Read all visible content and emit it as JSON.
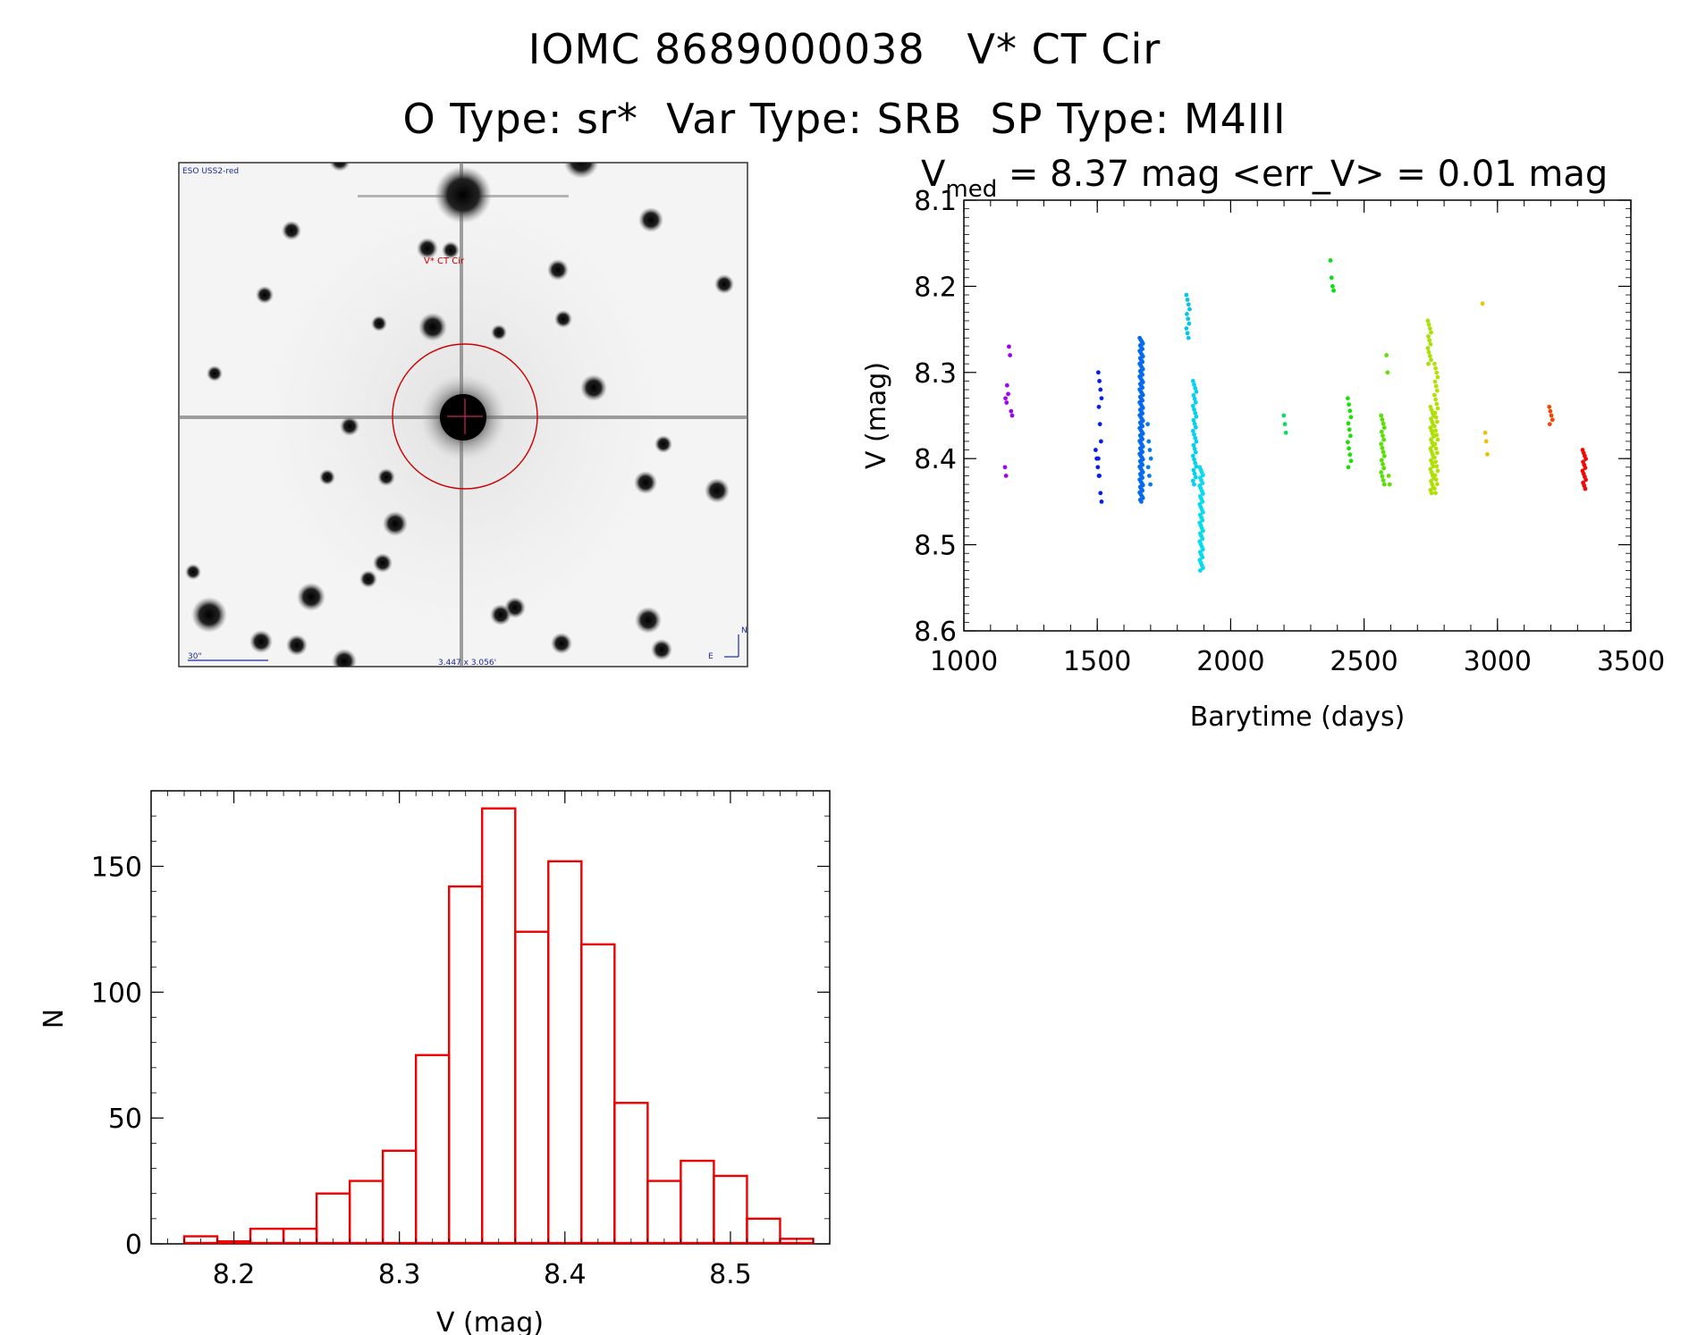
{
  "header": {
    "line1": "IOMC 8689000038   V* CT Cir",
    "line2": "O Type: sr*  Var Type: SRB  SP Type: M4III"
  },
  "finder": {
    "survey_label": "ESO USS2-red",
    "target_label": "V* CT Cir",
    "scale_label": "30\"",
    "fov_label": "3.447 x 3.056'",
    "north": "N",
    "east": "E",
    "colors": {
      "circle": "#cc0000",
      "labels_blue": "#1a2a9a"
    }
  },
  "chart_data": [
    {
      "type": "scatter",
      "title_main": "V",
      "title_sub": "med",
      "title_rest": " = 8.37 mag <err_V> = 0.01 mag",
      "xlabel": "Barytime (days)",
      "ylabel": "V (mag)",
      "xlim": [
        1000,
        3500
      ],
      "ylim": [
        8.6,
        8.1
      ],
      "y_reversed": true,
      "x_ticks": [
        1000,
        1500,
        2000,
        2500,
        3000,
        3500
      ],
      "y_ticks": [
        "8.1",
        "8.2",
        "8.3",
        "8.4",
        "8.5",
        "8.6"
      ],
      "color_scale": "rainbow by time (purple to red)",
      "groups": [
        {
          "x": 1160,
          "y": [
            8.41,
            8.42,
            8.315,
            8.325,
            8.33,
            8.335
          ]
        },
        {
          "x": 1175,
          "y": [
            8.27,
            8.28,
            8.345,
            8.35
          ]
        },
        {
          "x": 1500,
          "y": [
            8.39,
            8.4,
            8.41,
            8.42
          ]
        },
        {
          "x": 1510,
          "y": [
            8.3,
            8.31,
            8.32,
            8.33,
            8.34,
            8.36,
            8.38,
            8.4,
            8.42,
            8.44,
            8.45
          ]
        },
        {
          "x": 1665,
          "y_range": [
            8.26,
            8.45
          ],
          "n": 90
        },
        {
          "x": 1695,
          "y": [
            8.36,
            8.38,
            8.39,
            8.4,
            8.41,
            8.42,
            8.43
          ]
        },
        {
          "x": 1840,
          "y_range": [
            8.21,
            8.26
          ],
          "n": 10
        },
        {
          "x": 1865,
          "y_range": [
            8.31,
            8.43
          ],
          "n": 30
        },
        {
          "x": 1890,
          "y_range": [
            8.41,
            8.53
          ],
          "n": 40
        },
        {
          "x": 2205,
          "y": [
            8.35,
            8.36,
            8.37
          ]
        },
        {
          "x": 2380,
          "y": [
            8.17,
            8.19,
            8.2,
            8.205
          ]
        },
        {
          "x": 2445,
          "y_range": [
            8.33,
            8.41
          ],
          "n": 12
        },
        {
          "x": 2570,
          "y_range": [
            8.35,
            8.43
          ],
          "n": 18
        },
        {
          "x": 2590,
          "y": [
            8.28,
            8.3,
            8.42,
            8.43
          ]
        },
        {
          "x": 2745,
          "y_range": [
            8.24,
            8.29
          ],
          "n": 12
        },
        {
          "x": 2755,
          "y_range": [
            8.34,
            8.44
          ],
          "n": 30
        },
        {
          "x": 2770,
          "y_range": [
            8.29,
            8.44
          ],
          "n": 30
        },
        {
          "x": 2950,
          "y": [
            8.22
          ]
        },
        {
          "x": 2960,
          "y": [
            8.37,
            8.38,
            8.395
          ]
        },
        {
          "x": 3200,
          "y": [
            8.34,
            8.345,
            8.35,
            8.355,
            8.36
          ]
        },
        {
          "x": 3325,
          "y_range": [
            8.39,
            8.435
          ],
          "n": 14
        }
      ]
    },
    {
      "type": "bar",
      "style": "histogram-outline",
      "xlabel": "V (mag)",
      "ylabel": "N",
      "xlim": [
        8.15,
        8.56
      ],
      "ylim": [
        0,
        180
      ],
      "x_ticks": [
        "8.2",
        "8.3",
        "8.4",
        "8.5"
      ],
      "y_ticks": [
        "0",
        "50",
        "100",
        "150"
      ],
      "bin_width": 0.02,
      "bin_starts": [
        8.17,
        8.19,
        8.21,
        8.23,
        8.25,
        8.27,
        8.29,
        8.31,
        8.33,
        8.35,
        8.37,
        8.39,
        8.41,
        8.43,
        8.45,
        8.47,
        8.49,
        8.51,
        8.53
      ],
      "values": [
        3,
        1,
        6,
        6,
        20,
        25,
        37,
        75,
        142,
        173,
        124,
        152,
        119,
        56,
        25,
        33,
        27,
        10,
        2
      ],
      "color": "#ee0000"
    }
  ]
}
